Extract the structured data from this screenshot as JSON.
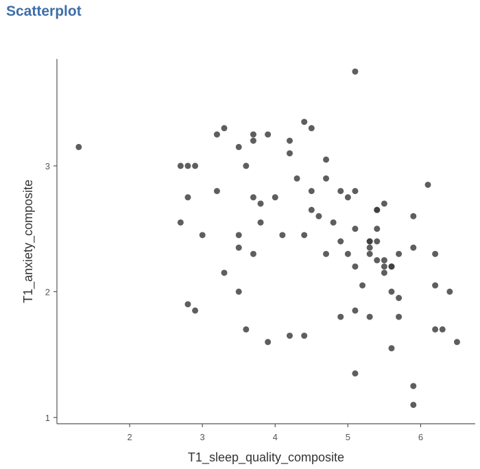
{
  "page": {
    "title": "Scatterplot"
  },
  "chart_data": {
    "type": "scatter",
    "xlabel": "T1_sleep_quality_composite",
    "ylabel": "T1_anxiety_composite",
    "xlim": [
      1.0,
      6.75
    ],
    "ylim": [
      0.95,
      3.85
    ],
    "xticks": [
      2,
      3,
      4,
      5,
      6
    ],
    "yticks": [
      1,
      2,
      3
    ],
    "grid": false,
    "point_color": "#3a3a3a",
    "points": [
      [
        1.3,
        3.15
      ],
      [
        2.7,
        3.0
      ],
      [
        2.8,
        3.0
      ],
      [
        2.9,
        3.0
      ],
      [
        2.8,
        2.75
      ],
      [
        2.7,
        2.55
      ],
      [
        3.0,
        2.45
      ],
      [
        2.8,
        1.9
      ],
      [
        2.9,
        1.85
      ],
      [
        3.2,
        3.25
      ],
      [
        3.3,
        3.3
      ],
      [
        3.2,
        2.8
      ],
      [
        3.3,
        2.15
      ],
      [
        3.5,
        3.15
      ],
      [
        3.6,
        3.0
      ],
      [
        3.5,
        2.45
      ],
      [
        3.5,
        2.35
      ],
      [
        3.5,
        2.0
      ],
      [
        3.6,
        1.7
      ],
      [
        3.7,
        3.25
      ],
      [
        3.7,
        3.2
      ],
      [
        3.9,
        3.25
      ],
      [
        3.7,
        2.75
      ],
      [
        3.8,
        2.7
      ],
      [
        3.8,
        2.55
      ],
      [
        3.7,
        2.3
      ],
      [
        4.0,
        2.75
      ],
      [
        4.1,
        2.45
      ],
      [
        3.9,
        1.6
      ],
      [
        4.2,
        3.2
      ],
      [
        4.2,
        3.1
      ],
      [
        4.3,
        2.9
      ],
      [
        4.2,
        1.65
      ],
      [
        4.4,
        3.35
      ],
      [
        4.5,
        3.3
      ],
      [
        4.5,
        2.8
      ],
      [
        4.5,
        2.65
      ],
      [
        4.4,
        2.45
      ],
      [
        4.6,
        2.6
      ],
      [
        4.4,
        1.65
      ],
      [
        4.7,
        3.05
      ],
      [
        4.7,
        2.9
      ],
      [
        4.8,
        2.55
      ],
      [
        4.7,
        2.3
      ],
      [
        4.9,
        2.8
      ],
      [
        5.0,
        2.75
      ],
      [
        4.9,
        2.4
      ],
      [
        5.0,
        2.3
      ],
      [
        4.9,
        1.8
      ],
      [
        5.1,
        3.75
      ],
      [
        5.1,
        2.8
      ],
      [
        5.1,
        2.5
      ],
      [
        5.1,
        2.2
      ],
      [
        5.2,
        2.05
      ],
      [
        5.1,
        1.85
      ],
      [
        5.1,
        1.35
      ],
      [
        5.3,
        2.4
      ],
      [
        5.3,
        2.4
      ],
      [
        5.3,
        2.35
      ],
      [
        5.3,
        2.3
      ],
      [
        5.3,
        1.8
      ],
      [
        5.4,
        2.65
      ],
      [
        5.4,
        2.65
      ],
      [
        5.4,
        2.5
      ],
      [
        5.4,
        2.4
      ],
      [
        5.4,
        2.25
      ],
      [
        5.5,
        2.7
      ],
      [
        5.5,
        2.25
      ],
      [
        5.5,
        2.2
      ],
      [
        5.5,
        2.15
      ],
      [
        5.6,
        2.2
      ],
      [
        5.6,
        2.2
      ],
      [
        5.6,
        2.0
      ],
      [
        5.6,
        1.55
      ],
      [
        5.7,
        2.3
      ],
      [
        5.7,
        1.95
      ],
      [
        5.7,
        1.8
      ],
      [
        5.9,
        2.6
      ],
      [
        5.9,
        2.35
      ],
      [
        5.9,
        1.25
      ],
      [
        5.9,
        1.1
      ],
      [
        6.1,
        2.85
      ],
      [
        6.2,
        2.3
      ],
      [
        6.2,
        2.05
      ],
      [
        6.2,
        1.7
      ],
      [
        6.3,
        1.7
      ],
      [
        6.4,
        2.0
      ],
      [
        6.5,
        1.6
      ]
    ]
  }
}
